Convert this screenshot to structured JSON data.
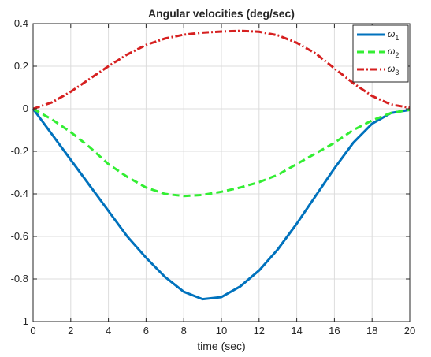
{
  "chart_data": {
    "type": "line",
    "title": "Angular velocities (deg/sec)",
    "xlabel": "time (sec)",
    "ylabel": "",
    "xlim": [
      0,
      20
    ],
    "ylim": [
      -1,
      0.4
    ],
    "x_ticks": [
      0,
      2,
      4,
      6,
      8,
      10,
      12,
      14,
      16,
      18,
      20
    ],
    "y_ticks": [
      -1,
      -0.8,
      -0.6,
      -0.4,
      -0.2,
      0,
      0.2,
      0.4
    ],
    "grid": true,
    "legend_position": "top-right",
    "x": [
      0,
      1,
      2,
      3,
      4,
      5,
      6,
      7,
      8,
      9,
      10,
      11,
      12,
      13,
      14,
      15,
      16,
      17,
      18,
      19,
      20
    ],
    "series": [
      {
        "name": "ω",
        "subscript": "1",
        "color": "#0072BD",
        "style": "solid",
        "values": [
          0,
          -0.12,
          -0.24,
          -0.36,
          -0.48,
          -0.6,
          -0.7,
          -0.79,
          -0.86,
          -0.895,
          -0.885,
          -0.835,
          -0.76,
          -0.66,
          -0.54,
          -0.41,
          -0.28,
          -0.16,
          -0.07,
          -0.02,
          -0.005
        ]
      },
      {
        "name": "ω",
        "subscript": "2",
        "color": "#33EE33",
        "style": "dashed",
        "values": [
          0,
          -0.05,
          -0.11,
          -0.18,
          -0.26,
          -0.32,
          -0.37,
          -0.4,
          -0.41,
          -0.405,
          -0.39,
          -0.37,
          -0.345,
          -0.31,
          -0.26,
          -0.21,
          -0.16,
          -0.1,
          -0.055,
          -0.02,
          -0.005
        ]
      },
      {
        "name": "ω",
        "subscript": "3",
        "color": "#D62020",
        "style": "dashdot",
        "values": [
          0,
          0.03,
          0.08,
          0.14,
          0.2,
          0.255,
          0.3,
          0.33,
          0.348,
          0.358,
          0.363,
          0.366,
          0.362,
          0.345,
          0.31,
          0.26,
          0.19,
          0.12,
          0.06,
          0.02,
          0.005
        ]
      }
    ]
  }
}
